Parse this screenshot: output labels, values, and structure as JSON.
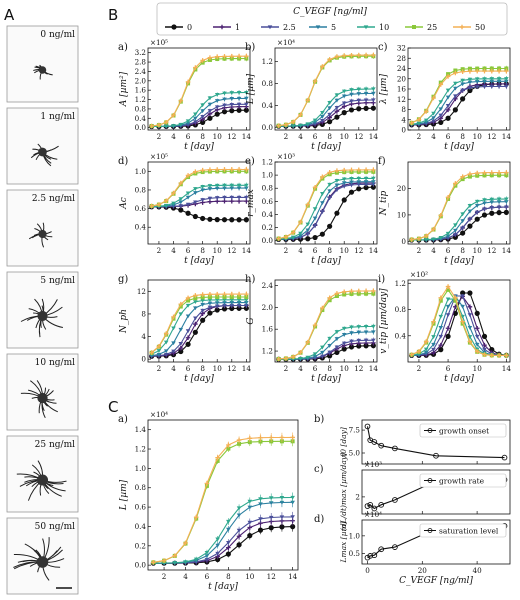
{
  "figure_labels": {
    "A": "A",
    "B": "B",
    "C": "C"
  },
  "colors": {
    "0": "#111111",
    "1": "#4b2070",
    "2.5": "#4a4f9a",
    "5": "#2b7fa0",
    "10": "#2fa88e",
    "25": "#8ac83a",
    "50": "#f4b055"
  },
  "legend": {
    "title": "C_VEGF [ng/ml]",
    "entries": [
      "0",
      "1",
      "2.5",
      "5",
      "10",
      "25",
      "50"
    ]
  },
  "cell_images": [
    {
      "label": "0 ng/ml",
      "spread": 0.25
    },
    {
      "label": "1 ng/ml",
      "spread": 0.45
    },
    {
      "label": "2.5 ng/ml",
      "spread": 0.38
    },
    {
      "label": "5 ng/ml",
      "spread": 0.7
    },
    {
      "label": "10 ng/ml",
      "spread": 0.72
    },
    {
      "label": "25 ng/ml",
      "spread": 0.85
    },
    {
      "label": "50 ng/ml",
      "spread": 0.92
    }
  ],
  "chart_data": [
    {
      "id": "Ba",
      "panel": "a)",
      "type": "line",
      "ylabel": "A [µm²]",
      "xlabel": "t [day]",
      "exponent": "×10⁵",
      "xlim": [
        0.5,
        14.5
      ],
      "ylim": [
        -0.1,
        3.4
      ],
      "xticks": [
        2,
        4,
        6,
        8,
        10,
        12,
        14
      ],
      "yticks": [
        0,
        0.4,
        0.8,
        1.2,
        1.6,
        2.0,
        2.4,
        2.8,
        3.2
      ],
      "ytick_labels": [
        "0.0",
        "0.4",
        "0.8",
        "1.2",
        "1.6",
        "2.0",
        "2.4",
        "2.8",
        "3.2"
      ],
      "shape": "sig",
      "start": 0.05,
      "plateau": [
        0.75,
        0.9,
        1.0,
        1.25,
        1.5,
        2.95,
        3.05
      ],
      "onset": [
        9,
        8.5,
        8.2,
        7.8,
        7.5,
        5.5,
        5.5
      ]
    },
    {
      "id": "Bb",
      "panel": "b)",
      "type": "line",
      "ylabel": "L [µm]",
      "xlabel": "t [day]",
      "exponent": "×10⁴",
      "xlim": [
        0.5,
        14.5
      ],
      "ylim": [
        -0.05,
        1.45
      ],
      "xticks": [
        2,
        4,
        6,
        8,
        10,
        12,
        14
      ],
      "yticks": [
        0,
        0.4,
        0.8,
        1.2
      ],
      "ytick_labels": [
        "0.0",
        "0.4",
        "0.8",
        "1.2"
      ],
      "shape": "sig",
      "start": 0.02,
      "plateau": [
        0.35,
        0.45,
        0.5,
        0.62,
        0.7,
        1.3,
        1.32
      ],
      "onset": [
        9,
        8.5,
        8.2,
        7.8,
        7.5,
        5.5,
        5.5
      ]
    },
    {
      "id": "Bc",
      "panel": "c)",
      "type": "line",
      "ylabel": "λ [µm]",
      "xlabel": "t [day]",
      "exponent": "",
      "xlim": [
        0.5,
        14.5
      ],
      "ylim": [
        0,
        32
      ],
      "xticks": [
        2,
        4,
        6,
        8,
        10,
        12,
        14
      ],
      "yticks": [
        0,
        4,
        8,
        12,
        16,
        20,
        24,
        28,
        32
      ],
      "ytick_labels": [
        "0",
        "4",
        "8",
        "12",
        "16",
        "20",
        "24",
        "28",
        "32"
      ],
      "shape": "sig",
      "start": 2,
      "plateau": [
        18,
        18,
        17,
        19,
        20,
        24,
        23
      ],
      "onset": [
        7.5,
        6.5,
        6,
        5.5,
        5,
        4,
        4
      ]
    },
    {
      "id": "Bd",
      "panel": "d)",
      "type": "line",
      "ylabel": "Ac",
      "xlabel": "t [day]",
      "exponent": "×10⁵",
      "xlim": [
        0.5,
        14.5
      ],
      "ylim": [
        0.22,
        1.1
      ],
      "xticks": [
        2,
        4,
        6,
        8,
        10,
        12,
        14
      ],
      "yticks": [
        0.2,
        0.4,
        0.6,
        0.8,
        1.0
      ],
      "ytick_labels": [
        "0.2",
        "0.4",
        "0.6",
        "0.8",
        "1.0"
      ],
      "shape": "sig",
      "start": 0.62,
      "plateau": [
        0.48,
        0.68,
        0.72,
        0.82,
        0.85,
        1.0,
        1.02
      ],
      "onset": [
        6,
        7,
        7,
        6,
        5.5,
        4.5,
        4.5
      ]
    },
    {
      "id": "Be",
      "panel": "e)",
      "type": "line",
      "ylabel": "r_max",
      "xlabel": "t [day]",
      "exponent": "×10³",
      "xlim": [
        0.5,
        14.5
      ],
      "ylim": [
        -0.05,
        1.2
      ],
      "xticks": [
        2,
        4,
        6,
        8,
        10,
        12,
        14
      ],
      "yticks": [
        0,
        0.2,
        0.4,
        0.6,
        0.8,
        1.0,
        1.2
      ],
      "ytick_labels": [
        "0.0",
        "0.2",
        "0.4",
        "0.6",
        "0.8",
        "1.0",
        "1.2"
      ],
      "shape": "sig",
      "start": 0.02,
      "plateau": [
        0.82,
        0.88,
        0.86,
        0.9,
        0.95,
        1.05,
        1.08
      ],
      "onset": [
        9,
        7,
        7,
        6.5,
        6,
        5,
        5
      ]
    },
    {
      "id": "Bf",
      "panel": "f)",
      "type": "line",
      "ylabel": "N_tip",
      "xlabel": "t [day]",
      "exponent": "",
      "xlim": [
        0.5,
        14.5
      ],
      "ylim": [
        -1,
        30
      ],
      "xticks": [
        2,
        4,
        6,
        8,
        10,
        12,
        14
      ],
      "yticks": [
        0,
        10,
        20
      ],
      "ytick_labels": [
        "0",
        "10",
        "20"
      ],
      "shape": "sig",
      "start": 0.5,
      "plateau": [
        11,
        13,
        13,
        15,
        16,
        25,
        26
      ],
      "onset": [
        9,
        8.5,
        8.5,
        8,
        7.5,
        5.5,
        5.5
      ]
    },
    {
      "id": "Bg",
      "panel": "g)",
      "type": "line",
      "ylabel": "N_ph",
      "xlabel": "t [day]",
      "exponent": "",
      "xlim": [
        0.5,
        14.5
      ],
      "ylim": [
        -0.5,
        14
      ],
      "xticks": [
        2,
        4,
        6,
        8,
        10,
        12,
        14
      ],
      "yticks": [
        0,
        4,
        8,
        12
      ],
      "ytick_labels": [
        "0",
        "4",
        "8",
        "12"
      ],
      "shape": "sig",
      "start": 0.5,
      "plateau": [
        9,
        9.5,
        9.5,
        10,
        10.5,
        11,
        11.5
      ],
      "onset": [
        7,
        6.5,
        6,
        5,
        4,
        3.5,
        3.5
      ]
    },
    {
      "id": "Bh",
      "panel": "h)",
      "type": "line",
      "ylabel": "G",
      "xlabel": "t [day]",
      "exponent": "",
      "xlim": [
        0.5,
        14.5
      ],
      "ylim": [
        1.0,
        2.5
      ],
      "xticks": [
        2,
        4,
        6,
        8,
        10,
        12,
        14
      ],
      "yticks": [
        1.2,
        1.6,
        2.0,
        2.4
      ],
      "ytick_labels": [
        "1.2",
        "1.6",
        "2.0",
        "2.4"
      ],
      "shape": "sig",
      "start": 1.05,
      "plateau": [
        1.3,
        1.35,
        1.4,
        1.55,
        1.65,
        2.25,
        2.3
      ],
      "onset": [
        9,
        8.5,
        8.5,
        8,
        7.5,
        6,
        6
      ]
    },
    {
      "id": "Bi",
      "panel": "i)",
      "type": "line",
      "ylabel": "v_tip [µm/day]",
      "xlabel": "t [day]",
      "exponent": "×10²",
      "xlim": [
        0.5,
        14.5
      ],
      "ylim": [
        0,
        1.25
      ],
      "xticks": [
        2,
        6,
        10,
        14
      ],
      "yticks": [
        0.4,
        0.8,
        1.2
      ],
      "ytick_labels": [
        "0.4",
        "0.8",
        "1.2"
      ],
      "shape": "peak",
      "start": 0.1,
      "plateau": [
        1.1,
        1.0,
        1.05,
        1.0,
        1.0,
        1.1,
        1.15
      ],
      "onset": [
        8.5,
        8,
        7.5,
        7,
        6.5,
        6,
        6
      ]
    },
    {
      "id": "Ca",
      "panel": "a)",
      "type": "line",
      "ylabel": "L [µm]",
      "xlabel": "t [day]",
      "exponent": "×10⁴",
      "xlim": [
        0.5,
        14.5
      ],
      "ylim": [
        -0.05,
        1.5
      ],
      "xticks": [
        2,
        4,
        6,
        8,
        10,
        12,
        14
      ],
      "yticks": [
        0,
        0.2,
        0.4,
        0.6,
        0.8,
        1.0,
        1.2,
        1.4
      ],
      "ytick_labels": [
        "0.0",
        "0.2",
        "0.4",
        "0.6",
        "0.8",
        "1.0",
        "1.2",
        "1.4"
      ],
      "shape": "sig",
      "start": 0.02,
      "plateau": [
        0.4,
        0.46,
        0.5,
        0.65,
        0.7,
        1.28,
        1.32
      ],
      "onset": [
        9,
        8.5,
        8.2,
        7.8,
        7.5,
        5.5,
        5.5
      ]
    },
    {
      "id": "Cb",
      "panel": "b)",
      "type": "line",
      "ylabel": "t0 [day]",
      "xlabel": "",
      "exponent": "",
      "legend": "growth onset",
      "x": [
        0,
        1,
        2.5,
        5,
        10,
        25,
        50
      ],
      "y": [
        7.9,
        6.4,
        6.2,
        5.8,
        5.5,
        4.7,
        4.5
      ],
      "xlim": [
        -2,
        52
      ],
      "ylim": [
        3.8,
        8.6
      ],
      "yticks": [
        5.0,
        7.5
      ],
      "ytick_labels": [
        "5.0",
        "7.5"
      ]
    },
    {
      "id": "Cc",
      "panel": "c)",
      "type": "line",
      "ylabel": "(dL/dt)max [µm/day]",
      "xlabel": "",
      "exponent": "×10³",
      "legend": "growth rate",
      "x": [
        0,
        1,
        2.5,
        5,
        10,
        25,
        50
      ],
      "y": [
        1.25,
        1.35,
        1.05,
        1.35,
        1.75,
        3.3,
        3.4
      ],
      "xlim": [
        -2,
        52
      ],
      "ylim": [
        0.6,
        4.2
      ],
      "yticks": [
        2
      ],
      "ytick_labels": [
        "2"
      ]
    },
    {
      "id": "Cd",
      "panel": "d)",
      "type": "line",
      "ylabel": "Lmax [µm]",
      "xlabel": "C_VEGF [ng/ml]",
      "exponent": "×10⁴",
      "legend": "saturation level",
      "x": [
        0,
        1,
        2.5,
        5,
        10,
        25,
        50
      ],
      "y": [
        0.38,
        0.43,
        0.45,
        0.62,
        0.68,
        1.2,
        1.28
      ],
      "xlim": [
        -2,
        52
      ],
      "ylim": [
        0.2,
        1.45
      ],
      "yticks": [
        0.5,
        1.0
      ],
      "ytick_labels": [
        "0.5",
        "1.0"
      ],
      "xticks": [
        0,
        20,
        40
      ],
      "xtick_labels": [
        "0",
        "20",
        "40"
      ]
    }
  ]
}
